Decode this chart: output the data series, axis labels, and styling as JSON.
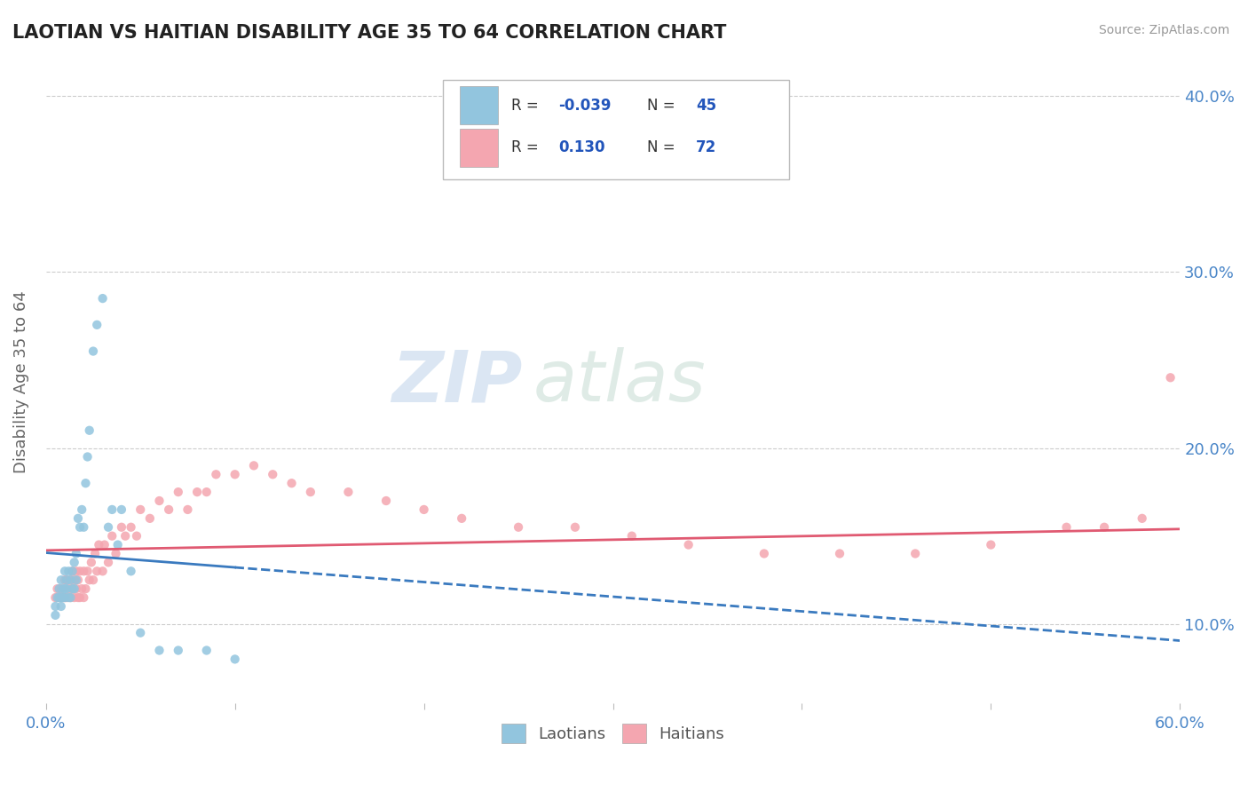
{
  "title": "LAOTIAN VS HAITIAN DISABILITY AGE 35 TO 64 CORRELATION CHART",
  "source_text": "Source: ZipAtlas.com",
  "ylabel": "Disability Age 35 to 64",
  "xlim": [
    0.0,
    0.6
  ],
  "ylim": [
    0.055,
    0.42
  ],
  "laotian_color": "#92c5de",
  "haitian_color": "#f4a6b0",
  "laotian_line_color": "#3a7abf",
  "haitian_line_color": "#e05a72",
  "watermark_zip": "ZIP",
  "watermark_atlas": "atlas",
  "laotian_x": [
    0.005,
    0.005,
    0.006,
    0.007,
    0.007,
    0.008,
    0.008,
    0.008,
    0.009,
    0.009,
    0.01,
    0.01,
    0.01,
    0.011,
    0.011,
    0.012,
    0.012,
    0.013,
    0.013,
    0.014,
    0.014,
    0.015,
    0.015,
    0.016,
    0.016,
    0.017,
    0.018,
    0.019,
    0.02,
    0.021,
    0.022,
    0.023,
    0.025,
    0.027,
    0.03,
    0.033,
    0.035,
    0.038,
    0.04,
    0.045,
    0.05,
    0.06,
    0.07,
    0.085,
    0.1
  ],
  "laotian_y": [
    0.105,
    0.11,
    0.115,
    0.115,
    0.12,
    0.11,
    0.115,
    0.125,
    0.115,
    0.12,
    0.115,
    0.12,
    0.13,
    0.12,
    0.125,
    0.115,
    0.13,
    0.115,
    0.125,
    0.12,
    0.13,
    0.12,
    0.135,
    0.125,
    0.14,
    0.16,
    0.155,
    0.165,
    0.155,
    0.18,
    0.195,
    0.21,
    0.255,
    0.27,
    0.285,
    0.155,
    0.165,
    0.145,
    0.165,
    0.13,
    0.095,
    0.085,
    0.085,
    0.085,
    0.08
  ],
  "haitian_x": [
    0.005,
    0.006,
    0.007,
    0.008,
    0.009,
    0.01,
    0.01,
    0.011,
    0.011,
    0.012,
    0.013,
    0.013,
    0.014,
    0.014,
    0.015,
    0.015,
    0.016,
    0.016,
    0.017,
    0.017,
    0.018,
    0.018,
    0.019,
    0.02,
    0.02,
    0.021,
    0.022,
    0.023,
    0.024,
    0.025,
    0.026,
    0.027,
    0.028,
    0.03,
    0.031,
    0.033,
    0.035,
    0.037,
    0.04,
    0.042,
    0.045,
    0.048,
    0.05,
    0.055,
    0.06,
    0.065,
    0.07,
    0.075,
    0.08,
    0.085,
    0.09,
    0.1,
    0.11,
    0.12,
    0.13,
    0.14,
    0.16,
    0.18,
    0.2,
    0.22,
    0.25,
    0.28,
    0.31,
    0.34,
    0.38,
    0.42,
    0.46,
    0.5,
    0.54,
    0.56,
    0.58,
    0.595
  ],
  "haitian_y": [
    0.115,
    0.12,
    0.115,
    0.12,
    0.115,
    0.115,
    0.125,
    0.115,
    0.125,
    0.12,
    0.115,
    0.125,
    0.12,
    0.13,
    0.115,
    0.125,
    0.12,
    0.13,
    0.115,
    0.125,
    0.115,
    0.13,
    0.12,
    0.115,
    0.13,
    0.12,
    0.13,
    0.125,
    0.135,
    0.125,
    0.14,
    0.13,
    0.145,
    0.13,
    0.145,
    0.135,
    0.15,
    0.14,
    0.155,
    0.15,
    0.155,
    0.15,
    0.165,
    0.16,
    0.17,
    0.165,
    0.175,
    0.165,
    0.175,
    0.175,
    0.185,
    0.185,
    0.19,
    0.185,
    0.18,
    0.175,
    0.175,
    0.17,
    0.165,
    0.16,
    0.155,
    0.155,
    0.15,
    0.145,
    0.14,
    0.14,
    0.14,
    0.145,
    0.155,
    0.155,
    0.16,
    0.24
  ],
  "background_color": "#ffffff",
  "grid_color": "#cccccc"
}
